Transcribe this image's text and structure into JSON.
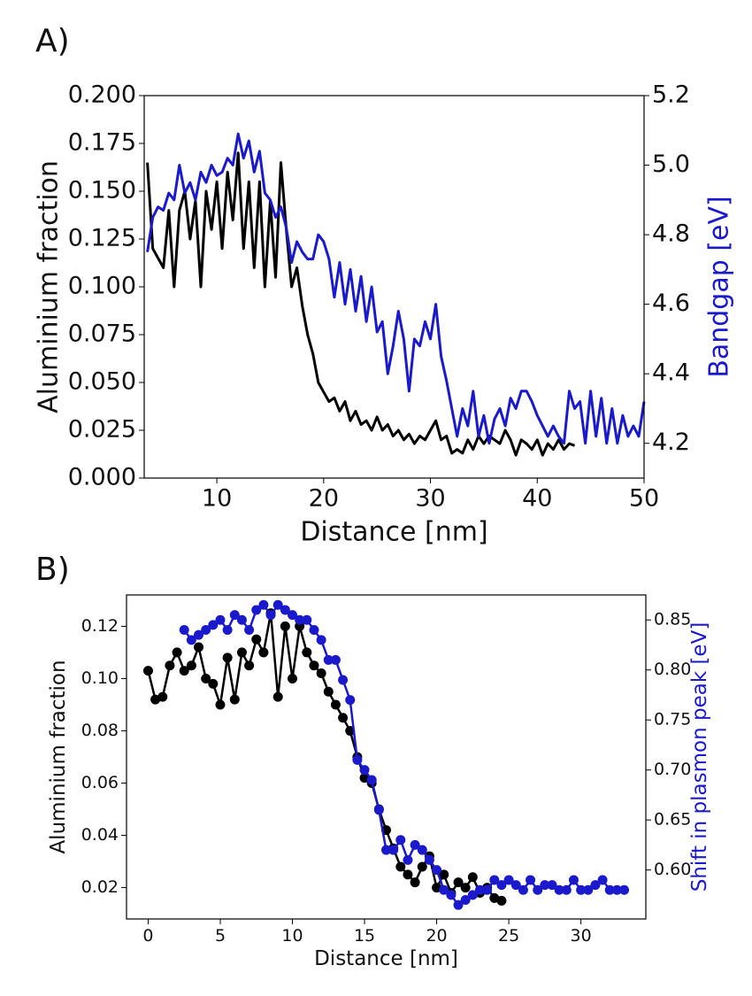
{
  "chart_data": [
    {
      "type": "line",
      "panel_label": "A)",
      "x_label": "Distance [nm]",
      "y_label": "Aluminium fraction",
      "y2_label": "Bandgap [eV]",
      "y2_label_color": "#1a1acc",
      "xlim": [
        3.2,
        50
      ],
      "xticks": [
        10,
        20,
        30,
        40,
        50
      ],
      "ylim": [
        0,
        0.2
      ],
      "yticks": [
        {
          "value": 0,
          "label": "0.000"
        },
        {
          "value": 0.025,
          "label": "0.025"
        },
        {
          "value": 0.05,
          "label": "0.050"
        },
        {
          "value": 0.075,
          "label": "0.075"
        },
        {
          "value": 0.1,
          "label": "0.100"
        },
        {
          "value": 0.125,
          "label": "0.125"
        },
        {
          "value": 0.15,
          "label": "0.150"
        },
        {
          "value": 0.175,
          "label": "0.175"
        },
        {
          "value": 0.2,
          "label": "0.200"
        }
      ],
      "y2lim": [
        4.1,
        5.2
      ],
      "y2ticks": [
        4.2,
        4.4,
        4.6,
        4.8,
        {
          "value": 5,
          "label": "5.0"
        },
        5.2
      ],
      "markers": false,
      "series": [
        {
          "color": "#000000",
          "x": [
            3.5,
            4,
            4.5,
            5,
            5.5,
            6,
            6.5,
            7,
            7.5,
            8,
            8.5,
            9,
            9.5,
            10,
            10.5,
            11,
            11.5,
            12,
            12.5,
            13,
            13.5,
            14,
            14.5,
            15,
            15.5,
            16,
            16.5,
            17,
            17.5,
            18,
            18.5,
            19,
            19.5,
            20,
            20.5,
            21,
            21.5,
            22,
            22.5,
            23,
            23.5,
            24,
            24.5,
            25,
            25.5,
            26,
            26.5,
            27,
            27.5,
            28,
            28.5,
            29,
            29.5,
            30,
            30.5,
            31,
            31.5,
            32,
            32.5,
            33,
            33.5,
            34,
            34.5,
            35,
            35.5,
            36,
            36.5,
            37,
            37.5,
            38,
            38.5,
            39,
            39.5,
            40,
            40.5,
            41,
            41.5,
            42,
            42.5,
            43,
            43.5
          ],
          "values": [
            0.165,
            0.12,
            0.115,
            0.11,
            0.14,
            0.1,
            0.14,
            0.15,
            0.125,
            0.145,
            0.1,
            0.15,
            0.13,
            0.155,
            0.12,
            0.16,
            0.135,
            0.17,
            0.12,
            0.155,
            0.11,
            0.155,
            0.1,
            0.145,
            0.105,
            0.165,
            0.13,
            0.1,
            0.11,
            0.09,
            0.075,
            0.065,
            0.05,
            0.045,
            0.04,
            0.042,
            0.035,
            0.04,
            0.03,
            0.035,
            0.028,
            0.03,
            0.025,
            0.032,
            0.025,
            0.028,
            0.022,
            0.025,
            0.02,
            0.023,
            0.018,
            0.022,
            0.02,
            0.025,
            0.03,
            0.02,
            0.022,
            0.013,
            0.015,
            0.013,
            0.02,
            0.015,
            0.022,
            0.018,
            0.022,
            0.02,
            0.018,
            0.025,
            0.02,
            0.012,
            0.02,
            0.018,
            0.015,
            0.02,
            0.012,
            0.018,
            0.015,
            0.02,
            0.015,
            0.018,
            0.017
          ]
        },
        {
          "color": "#1a1acc",
          "axis": "y2",
          "x": [
            3.5,
            4,
            4.5,
            5,
            5.5,
            6,
            6.5,
            7,
            7.5,
            8,
            8.5,
            9,
            9.5,
            10,
            10.5,
            11,
            11.5,
            12,
            12.5,
            13,
            13.5,
            14,
            14.5,
            15,
            15.5,
            16,
            16.5,
            17,
            17.5,
            18,
            18.5,
            19,
            19.5,
            20,
            20.5,
            21,
            21.5,
            22,
            22.5,
            23,
            23.5,
            24,
            24.5,
            25,
            25.5,
            26,
            26.5,
            27,
            27.5,
            28,
            28.5,
            29,
            29.5,
            30,
            30.5,
            31,
            31.5,
            32,
            32.5,
            33,
            33.5,
            34,
            34.5,
            35,
            35.5,
            36,
            36.5,
            37,
            37.5,
            38,
            38.5,
            39,
            39.5,
            40,
            40.5,
            41,
            41.5,
            42,
            42.5,
            43,
            43.5,
            44,
            44.5,
            45,
            45.5,
            46,
            46.5,
            47,
            47.5,
            48,
            48.5,
            49,
            49.5,
            50
          ],
          "values": [
            4.75,
            4.85,
            4.88,
            4.87,
            4.92,
            4.9,
            5.0,
            4.92,
            4.95,
            4.9,
            4.98,
            4.95,
            5.0,
            4.97,
            4.98,
            5.02,
            5.0,
            5.09,
            5.02,
            5.07,
            4.98,
            5.04,
            4.92,
            4.9,
            4.85,
            4.88,
            4.82,
            4.72,
            4.78,
            4.75,
            4.73,
            4.73,
            4.8,
            4.78,
            4.73,
            4.62,
            4.72,
            4.6,
            4.7,
            4.58,
            4.68,
            4.55,
            4.65,
            4.52,
            4.55,
            4.4,
            4.48,
            4.58,
            4.5,
            4.35,
            4.5,
            4.48,
            4.55,
            4.5,
            4.6,
            4.45,
            4.38,
            4.3,
            4.22,
            4.3,
            4.25,
            4.35,
            4.22,
            4.28,
            4.2,
            4.27,
            4.3,
            4.25,
            4.33,
            4.3,
            4.35,
            4.35,
            4.32,
            4.28,
            4.25,
            4.22,
            4.25,
            4.22,
            4.2,
            4.35,
            4.3,
            4.32,
            4.2,
            4.35,
            4.22,
            4.33,
            4.2,
            4.3,
            4.2,
            4.28,
            4.22,
            4.25,
            4.22,
            4.32
          ]
        }
      ]
    },
    {
      "type": "line",
      "panel_label": "B)",
      "x_label": "Distance [nm]",
      "y_label": "Aluminium fraction",
      "y2_label": "Shift in plasmon peak [eV]",
      "y2_label_color": "#1a1acc",
      "xlim": [
        -1.5,
        34.5
      ],
      "xticks": [
        0,
        5,
        10,
        15,
        20,
        25,
        30
      ],
      "ylim": [
        0.008,
        0.132
      ],
      "yticks": [
        0.02,
        0.04,
        0.06,
        0.08,
        {
          "value": 0.1,
          "label": "0.10"
        },
        0.12
      ],
      "y2lim": [
        0.551,
        0.875
      ],
      "y2ticks": [
        {
          "value": 0.6,
          "label": "0.60"
        },
        0.65,
        {
          "value": 0.7,
          "label": "0.70"
        },
        0.75,
        {
          "value": 0.8,
          "label": "0.80"
        },
        0.85
      ],
      "markers": true,
      "series": [
        {
          "color": "#000000",
          "x": [
            0,
            0.5,
            1,
            1.5,
            2,
            2.5,
            3,
            3.5,
            4,
            4.5,
            5,
            5.5,
            6,
            6.5,
            7,
            7.5,
            8,
            8.5,
            9,
            9.5,
            10,
            10.5,
            11,
            11.5,
            12,
            12.5,
            13,
            13.5,
            14,
            14.5,
            15,
            15.5,
            16,
            16.5,
            17,
            17.5,
            18,
            18.5,
            19,
            19.5,
            20,
            20.5,
            21,
            21.5,
            22,
            22.5,
            23,
            23.5,
            24,
            24.5
          ],
          "values": [
            0.103,
            0.092,
            0.093,
            0.105,
            0.11,
            0.103,
            0.105,
            0.112,
            0.1,
            0.098,
            0.09,
            0.108,
            0.092,
            0.11,
            0.105,
            0.115,
            0.11,
            0.125,
            0.093,
            0.12,
            0.1,
            0.12,
            0.11,
            0.105,
            0.102,
            0.095,
            0.09,
            0.085,
            0.08,
            0.07,
            0.062,
            0.06,
            0.05,
            0.042,
            0.035,
            0.028,
            0.025,
            0.022,
            0.028,
            0.032,
            0.02,
            0.025,
            0.018,
            0.022,
            0.02,
            0.024,
            0.018,
            0.02,
            0.016,
            0.015
          ]
        },
        {
          "color": "#1a1acc",
          "axis": "y2",
          "x": [
            2.5,
            3,
            3.5,
            4,
            4.5,
            5,
            5.5,
            6,
            6.5,
            7,
            7.5,
            8,
            8.5,
            9,
            9.5,
            10,
            10.5,
            11,
            11.5,
            12,
            12.5,
            13,
            13.5,
            14,
            14.5,
            15,
            15.5,
            16,
            16.5,
            17,
            17.5,
            18,
            18.5,
            19,
            19.5,
            20,
            20.5,
            21,
            21.5,
            22,
            22.5,
            23,
            23.5,
            24,
            24.5,
            25,
            25.5,
            26,
            26.5,
            27,
            27.5,
            28,
            28.5,
            29,
            29.5,
            30,
            30.5,
            31,
            31.5,
            32,
            32.5,
            33
          ],
          "values": [
            0.84,
            0.83,
            0.835,
            0.84,
            0.845,
            0.85,
            0.84,
            0.855,
            0.85,
            0.84,
            0.86,
            0.865,
            0.855,
            0.865,
            0.86,
            0.855,
            0.85,
            0.85,
            0.84,
            0.83,
            0.81,
            0.81,
            0.79,
            0.77,
            0.71,
            0.7,
            0.69,
            0.66,
            0.62,
            0.62,
            0.63,
            0.61,
            0.625,
            0.62,
            0.61,
            0.6,
            0.58,
            0.575,
            0.565,
            0.57,
            0.575,
            0.58,
            0.58,
            0.59,
            0.585,
            0.59,
            0.585,
            0.58,
            0.59,
            0.58,
            0.585,
            0.585,
            0.58,
            0.58,
            0.59,
            0.58,
            0.58,
            0.585,
            0.59,
            0.58,
            0.58,
            0.58
          ]
        }
      ]
    }
  ]
}
